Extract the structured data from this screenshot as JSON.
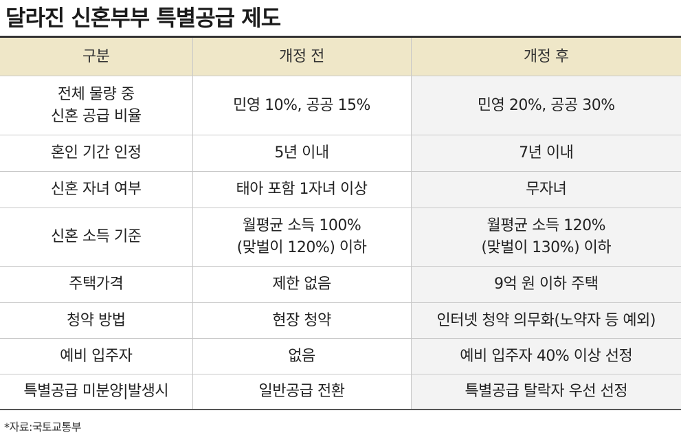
{
  "title": "달라진 신혼부부 특별공급 제도",
  "table": {
    "headers": [
      "구분",
      "개정 전",
      "개정 후"
    ],
    "rows": [
      {
        "category": [
          "전체 물량 중",
          "신혼 공급 비율"
        ],
        "before": [
          "민영 10%, 공공 15%"
        ],
        "after": [
          "민영 20%, 공공 30%"
        ]
      },
      {
        "category": [
          "혼인 기간 인정"
        ],
        "before": [
          "5년 이내"
        ],
        "after": [
          "7년 이내"
        ]
      },
      {
        "category": [
          "신혼 자녀 여부"
        ],
        "before": [
          "태아 포함 1자녀 이상"
        ],
        "after": [
          "무자녀"
        ]
      },
      {
        "category": [
          "신혼 소득 기준"
        ],
        "before": [
          "월평균 소득 100%",
          "(맞벌이 120%) 이하"
        ],
        "after": [
          "월평균 소득 120%",
          "(맞벌이 130%) 이하"
        ]
      },
      {
        "category": [
          "주택가격"
        ],
        "before": [
          "제한 없음"
        ],
        "after": [
          "9억 원 이하 주택"
        ]
      },
      {
        "category": [
          "청약 방법"
        ],
        "before": [
          "현장 청약"
        ],
        "after": [
          "인터넷 청약 의무화(노약자 등 예외)"
        ]
      },
      {
        "category": [
          "예비 입주자"
        ],
        "before": [
          "없음"
        ],
        "after": [
          "예비 입주자 40% 이상 선정"
        ]
      },
      {
        "category": [
          "특별공급 미분양|발생시"
        ],
        "before": [
          "일반공급 전환"
        ],
        "after": [
          "특별공급 탈락자 우선 선정"
        ]
      }
    ]
  },
  "source": "*자료:국토교통부",
  "colors": {
    "header_bg": "#efe7c8",
    "after_bg": "#f3f3f3",
    "rule": "#333333"
  }
}
